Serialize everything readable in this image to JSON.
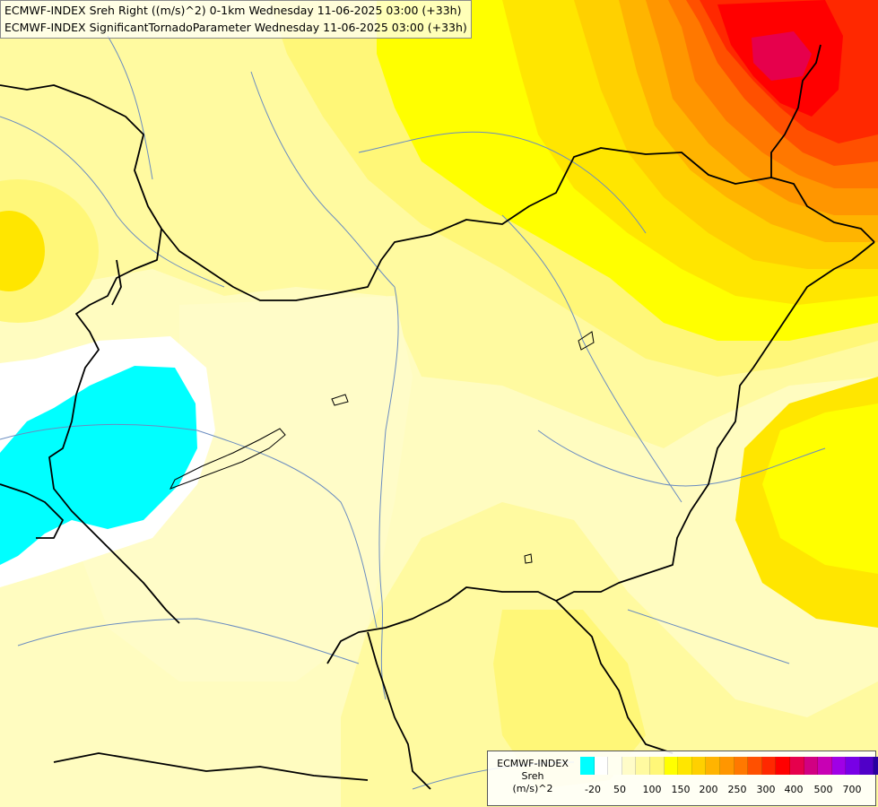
{
  "title": {
    "line1": "ECMWF-INDEX Sreh Right ((m/s)^2) 0-1km Wednesday 11-06-2025 03:00 (+33h)",
    "line2": "ECMWF-INDEX SignificantTornadoParameter Wednesday 11-06-2025 03:00 (+33h)"
  },
  "legend": {
    "line1": "ECMWF-INDEX",
    "line2": "Sreh",
    "line3": "(m/s)^2",
    "colors": [
      "#00ffff",
      "#ffffff",
      "#fffff0",
      "#fffcc8",
      "#fffaa0",
      "#fff778",
      "#ffff00",
      "#ffe600",
      "#ffd000",
      "#ffb400",
      "#ff9600",
      "#ff7800",
      "#ff5000",
      "#ff2800",
      "#ff0000",
      "#e6004c",
      "#d10082",
      "#c800b4",
      "#a000e6",
      "#7800e6",
      "#5000c8",
      "#2800a0",
      "#000080"
    ],
    "ticks": [
      "-20",
      "50",
      "100",
      "150",
      "200",
      "250",
      "300",
      "400",
      "500",
      "700"
    ]
  }
}
